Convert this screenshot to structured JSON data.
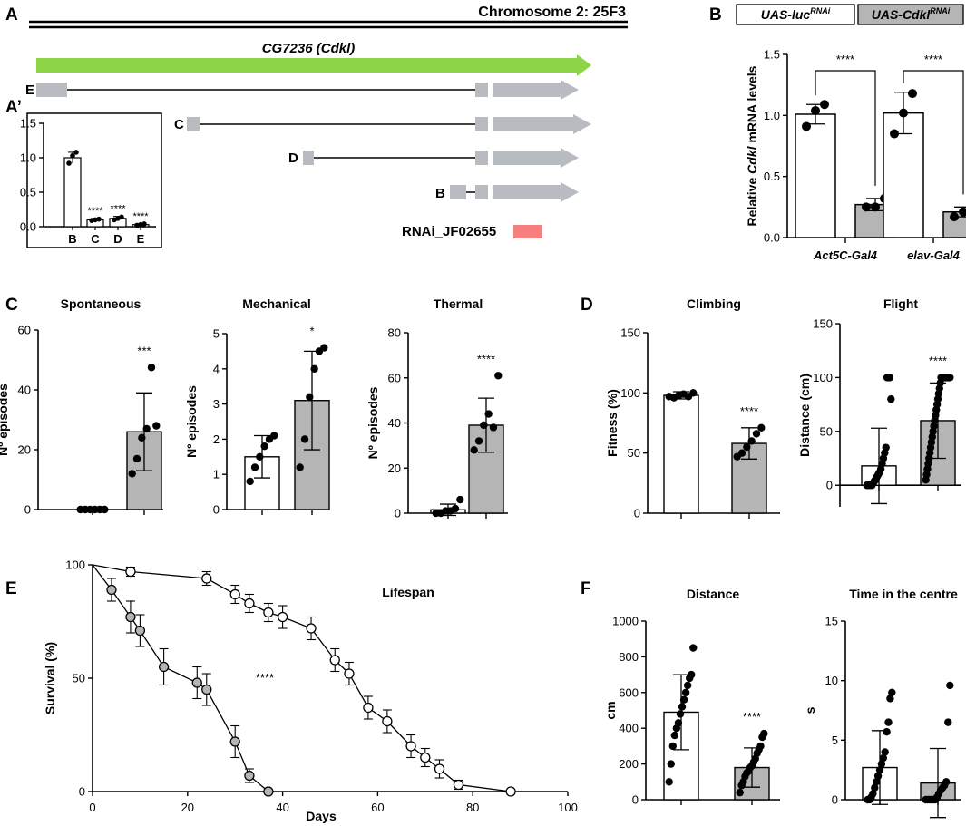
{
  "colors": {
    "control": "#ffffff",
    "rnai": "#b5b5b5",
    "exon": "#b8bcc0",
    "gene": "#8dd447",
    "rnai_region": "#f77f7f",
    "point": "#000000"
  },
  "panel_labels": {
    "a": "A",
    "a_prime": "A’",
    "b": "B",
    "c": "C",
    "d": "D",
    "e": "E",
    "f": "F"
  },
  "gene_diagram": {
    "chromosome": "Chromosome 2: 25F3",
    "gene_name": "CG7236 (Cdkl)",
    "isoforms": [
      {
        "label": "E"
      },
      {
        "label": "C"
      },
      {
        "label": "D"
      },
      {
        "label": "B"
      }
    ],
    "rnai_label": "RNAi_JF02655"
  },
  "legend": {
    "control": {
      "prefix": "UAS-luc",
      "sup": "RNAi"
    },
    "rnai": {
      "prefix": "UAS-Cdkl",
      "sup": "RNAi"
    }
  },
  "chart_data": [
    {
      "id": "a_prime",
      "type": "bar",
      "title": "",
      "categories": [
        "B",
        "C",
        "D",
        "E"
      ],
      "values": [
        1.0,
        0.1,
        0.12,
        0.03
      ],
      "errors": [
        0.08,
        0.02,
        0.03,
        0.01
      ],
      "points": [
        [
          0.92,
          1.03,
          1.08
        ],
        [
          0.09,
          0.1,
          0.11
        ],
        [
          0.1,
          0.12,
          0.14
        ],
        [
          0.02,
          0.03,
          0.04
        ]
      ],
      "significance": [
        "",
        "****",
        "****",
        "****"
      ],
      "ylim": [
        0,
        1.5
      ],
      "yticks": [
        "0.0",
        "0.5",
        "1.0",
        "1.5"
      ],
      "ylabel": ""
    },
    {
      "id": "b",
      "type": "bar",
      "title": "",
      "ylabel_prefix": "Relative ",
      "ylabel_italic": "Cdkl",
      "ylabel_suffix": " mRNA levels",
      "ylim": [
        0,
        1.5
      ],
      "yticks": [
        "0.0",
        "0.5",
        "1.0",
        "1.5"
      ],
      "groups": [
        {
          "label": "Act5C-Gal4",
          "control": 1.01,
          "control_err": 0.08,
          "control_points": [
            0.91,
            1.04,
            1.09
          ],
          "rnai": 0.27,
          "rnai_err": 0.05,
          "rnai_points": [
            0.25,
            0.25,
            0.32
          ],
          "significance": "****"
        },
        {
          "label": "elav-Gal4",
          "control": 1.02,
          "control_err": 0.17,
          "control_points": [
            0.85,
            1.02,
            1.18
          ],
          "rnai": 0.21,
          "rnai_err": 0.04,
          "rnai_points": [
            0.17,
            0.21,
            0.24
          ],
          "significance": "****"
        }
      ]
    },
    {
      "id": "c_spontaneous",
      "type": "bar",
      "title": "Spontaneous",
      "ylabel": "Nº episodes",
      "ylim": [
        0,
        60
      ],
      "yticks": [
        "0",
        "20",
        "40",
        "60"
      ],
      "values": [
        0,
        26
      ],
      "errors": [
        0,
        13
      ],
      "points": [
        [
          0,
          0,
          0,
          0,
          0,
          0
        ],
        [
          12,
          17,
          24,
          27,
          47.5,
          28
        ]
      ],
      "significance": "***"
    },
    {
      "id": "c_mechanical",
      "type": "bar",
      "title": "Mechanical",
      "ylabel": "Nº episodes",
      "ylim": [
        0,
        5
      ],
      "yticks": [
        "0",
        "1",
        "2",
        "3",
        "4",
        "5"
      ],
      "values": [
        1.5,
        3.1
      ],
      "errors": [
        0.6,
        1.4
      ],
      "points": [
        [
          0.8,
          1.2,
          1.5,
          1.8,
          2.0,
          2.1
        ],
        [
          1.2,
          2.0,
          3.2,
          4.0,
          4.5,
          4.6
        ]
      ],
      "significance": "*"
    },
    {
      "id": "c_thermal",
      "type": "bar",
      "title": "Thermal",
      "ylabel": "Nº episodes",
      "ylim": [
        0,
        80
      ],
      "yticks": [
        "0",
        "20",
        "40",
        "60",
        "80"
      ],
      "values": [
        1.5,
        39
      ],
      "errors": [
        2.5,
        12
      ],
      "points": [
        [
          0,
          0,
          1,
          1,
          2,
          6
        ],
        [
          28,
          32,
          39,
          44,
          38,
          61
        ]
      ],
      "significance": "****"
    },
    {
      "id": "d_climbing",
      "type": "bar",
      "title": "Climbing",
      "ylabel": "Fitness (%)",
      "ylim": [
        0,
        150
      ],
      "yticks": [
        "0",
        "50",
        "100",
        "150"
      ],
      "values": [
        98,
        58
      ],
      "errors": [
        3,
        13
      ],
      "points": [
        [
          97,
          96,
          98,
          99,
          97,
          100
        ],
        [
          47,
          50,
          55,
          60,
          66,
          71
        ]
      ],
      "significance": "****"
    },
    {
      "id": "d_flight",
      "type": "bar",
      "title": "Flight",
      "ylabel": "Distance (cm)",
      "ylim": [
        -20,
        150
      ],
      "yticks": [
        "0",
        "50",
        "100",
        "150"
      ],
      "values": [
        18,
        60
      ],
      "errors": [
        35,
        35
      ],
      "points": [
        [
          0,
          0,
          0,
          0,
          0,
          2,
          4,
          5,
          8,
          10,
          12,
          15,
          20,
          25,
          30,
          35,
          100,
          100,
          100,
          80
        ],
        [
          5,
          10,
          15,
          20,
          25,
          30,
          35,
          40,
          45,
          50,
          55,
          60,
          65,
          70,
          75,
          80,
          85,
          90,
          95,
          100,
          100,
          100,
          100,
          100,
          100,
          100,
          100,
          100,
          100,
          100,
          100
        ]
      ],
      "significance": "****"
    },
    {
      "id": "e_lifespan",
      "type": "line",
      "title": "Lifespan",
      "xlabel": "Days",
      "ylabel": "Survival (%)",
      "xlim": [
        0,
        100
      ],
      "ylim": [
        0,
        100
      ],
      "xticks": [
        "0",
        "20",
        "40",
        "60",
        "80",
        "100"
      ],
      "yticks": [
        "0",
        "50",
        "100"
      ],
      "significance": "****",
      "series": [
        {
          "name": "UAS-luc RNAi",
          "fill": "#ffffff",
          "x": [
            0,
            8,
            24,
            30,
            33,
            37,
            40,
            46,
            51,
            54,
            58,
            62,
            67,
            70,
            73,
            77,
            88
          ],
          "y": [
            100,
            97,
            94,
            87,
            83,
            79,
            77,
            72,
            58,
            52,
            37,
            31,
            20,
            15,
            10,
            3,
            0
          ],
          "err": [
            0,
            2,
            3,
            4,
            4,
            4,
            5,
            5,
            5,
            5,
            5,
            5,
            5,
            4,
            4,
            2,
            0
          ]
        },
        {
          "name": "UAS-Cdkl RNAi",
          "fill": "#b5b5b5",
          "x": [
            0,
            4,
            8,
            10,
            15,
            22,
            24,
            30,
            33,
            37
          ],
          "y": [
            100,
            89,
            77,
            71,
            55,
            48,
            45,
            22,
            7,
            0
          ],
          "err": [
            0,
            5,
            7,
            7,
            8,
            7,
            7,
            7,
            3,
            0
          ]
        }
      ]
    },
    {
      "id": "f_distance",
      "type": "bar",
      "title": "Distance",
      "ylabel": "cm",
      "ylim": [
        0,
        1000
      ],
      "yticks": [
        "0",
        "200",
        "400",
        "600",
        "800",
        "1000"
      ],
      "values": [
        490,
        180
      ],
      "errors": [
        210,
        110
      ],
      "points": [
        [
          100,
          200,
          300,
          360,
          400,
          430,
          480,
          520,
          560,
          600,
          640,
          680,
          700,
          850
        ],
        [
          40,
          80,
          100,
          130,
          150,
          160,
          180,
          190,
          210,
          230,
          260,
          280,
          300,
          350,
          370
        ]
      ],
      "significance": "****"
    },
    {
      "id": "f_time_centre",
      "type": "bar",
      "title": "Time in the centre",
      "ylabel": "s",
      "ylim": [
        0,
        15
      ],
      "yticks": [
        "0",
        "5",
        "10",
        "15"
      ],
      "values": [
        2.7,
        1.4
      ],
      "errors": [
        3.1,
        2.9
      ],
      "points": [
        [
          0,
          0,
          0.2,
          0.5,
          1,
          1.5,
          2,
          2.5,
          3,
          3.5,
          4,
          5.7,
          6.5,
          8.5,
          9
        ],
        [
          0,
          0,
          0,
          0,
          0,
          0,
          0.2,
          0.5,
          0.8,
          1,
          1.2,
          1.5,
          6.5,
          9.6
        ]
      ],
      "significance": ""
    }
  ]
}
